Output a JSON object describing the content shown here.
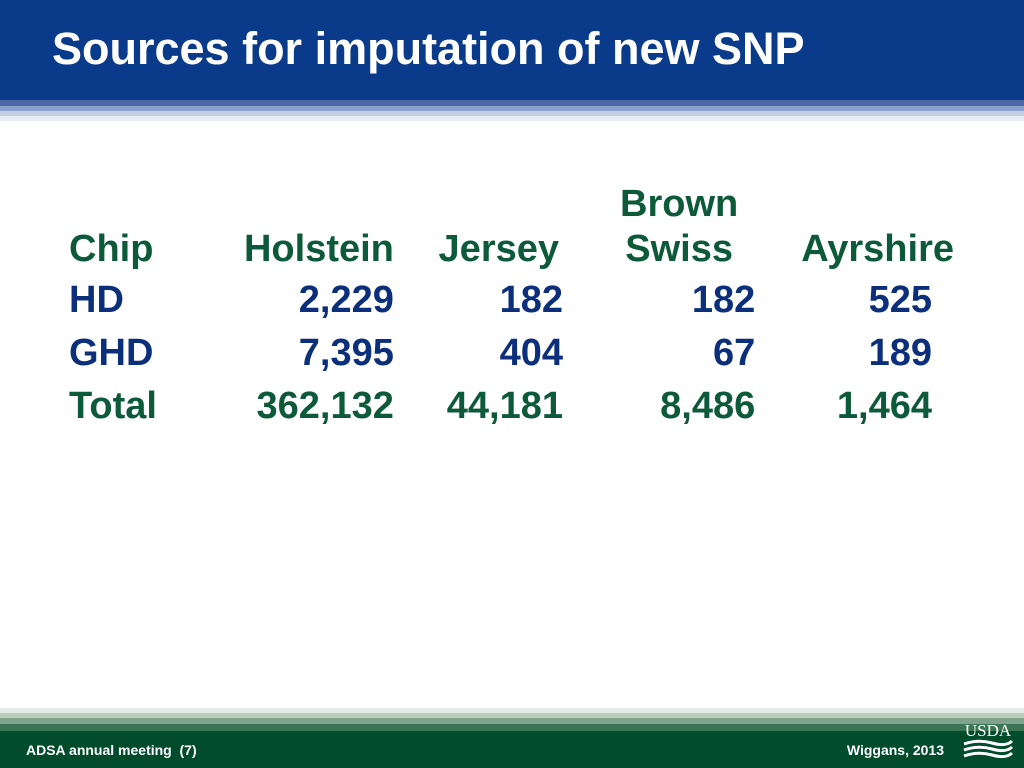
{
  "slide": {
    "title": "Sources for imputation of new SNP",
    "colors": {
      "header_bg": "#0a3a8a",
      "footer_bg": "#004c2c",
      "header_text_color": "#0d5a3a",
      "value_text_color": "#0b2f7a"
    }
  },
  "table": {
    "headers": {
      "chip": "Chip",
      "holstein": "Holstein",
      "jersey": "Jersey",
      "brown_swiss_line1": "Brown",
      "brown_swiss_line2": "Swiss",
      "ayrshire": "Ayrshire"
    },
    "rows": [
      {
        "chip": "HD",
        "holstein": "2,229",
        "jersey": "182",
        "brown_swiss": "182",
        "ayrshire": "525"
      },
      {
        "chip": "GHD",
        "holstein": "7,395",
        "jersey": "404",
        "brown_swiss": "67",
        "ayrshire": "189"
      },
      {
        "chip": "Total",
        "holstein": "362,132",
        "jersey": "44,181",
        "brown_swiss": "8,486",
        "ayrshire": "1,464"
      }
    ]
  },
  "footer": {
    "left": "ADSA annual meeting  (7)",
    "right": "Wiggans, 2013",
    "logo_text": "USDA"
  }
}
